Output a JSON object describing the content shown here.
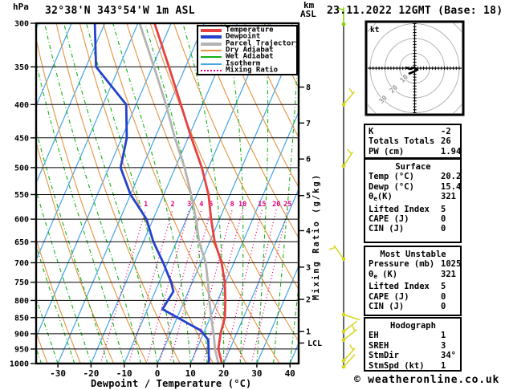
{
  "header": {
    "station_title": "32°38'N 343°54'W 1m ASL",
    "datetime_title": "23.11.2022 12GMT (Base: 18)",
    "pressure_unit": "hPa",
    "km_label": "km",
    "asl_label": "ASL"
  },
  "legend": {
    "items": [
      {
        "label": "Temperature",
        "color_key": "temperature",
        "thick": true,
        "dotted": false
      },
      {
        "label": "Dewpoint",
        "color_key": "dewpoint",
        "thick": true,
        "dotted": false
      },
      {
        "label": "Parcel Trajectory",
        "color_key": "parcel",
        "thick": true,
        "dotted": false
      },
      {
        "label": "Dry Adiabat",
        "color_key": "dry_adiabat",
        "thick": false,
        "dotted": false
      },
      {
        "label": "Wet Adiabat",
        "color_key": "wet_adiabat",
        "thick": false,
        "dotted": false
      },
      {
        "label": "Isotherm",
        "color_key": "isotherm",
        "thick": false,
        "dotted": false
      },
      {
        "label": "Mixing Ratio",
        "color_key": "mixing_ratio",
        "thick": false,
        "dotted": true
      }
    ]
  },
  "axes": {
    "x_title": "Dewpoint / Temperature (°C)",
    "x_ticks_c": [
      -30,
      -20,
      -10,
      0,
      10,
      20,
      30,
      40
    ],
    "pressure_ticks_hpa": [
      300,
      350,
      400,
      450,
      500,
      550,
      600,
      650,
      700,
      750,
      800,
      850,
      900,
      950,
      1000
    ],
    "km_ticks": [
      {
        "km": 8,
        "p": 376
      },
      {
        "km": 7,
        "p": 427
      },
      {
        "km": 6,
        "p": 485
      },
      {
        "km": 5,
        "p": 552
      },
      {
        "km": 4,
        "p": 625
      },
      {
        "km": 3,
        "p": 711
      },
      {
        "km": 2,
        "p": 797
      },
      {
        "km": 1,
        "p": 893
      }
    ],
    "lcl": {
      "label": "LCL",
      "p": 930
    },
    "mixing_axis_label": "Mixing Ratio (g/kg)"
  },
  "chart_data": {
    "type": "skewt_log_p",
    "pressure_range_hpa": [
      300,
      1000
    ],
    "temp_at_surface_axis_c": [
      -40,
      42
    ],
    "skew": "isotherms lean right with height",
    "profiles": {
      "temperature_c": [
        [
          300,
          -45
        ],
        [
          350,
          -35
        ],
        [
          400,
          -26.5
        ],
        [
          450,
          -19
        ],
        [
          500,
          -12
        ],
        [
          550,
          -6.5
        ],
        [
          600,
          -2.5
        ],
        [
          650,
          1.5
        ],
        [
          700,
          6.3
        ],
        [
          750,
          9.8
        ],
        [
          800,
          12.3
        ],
        [
          850,
          14.4
        ],
        [
          900,
          15.2
        ],
        [
          950,
          16.5
        ],
        [
          1000,
          19.5
        ]
      ],
      "dewpoint_c": [
        [
          300,
          -63
        ],
        [
          350,
          -57
        ],
        [
          400,
          -43
        ],
        [
          450,
          -38.5
        ],
        [
          500,
          -36.5
        ],
        [
          550,
          -30
        ],
        [
          600,
          -22
        ],
        [
          650,
          -17
        ],
        [
          700,
          -11.3
        ],
        [
          750,
          -6.4
        ],
        [
          775,
          -4.5
        ],
        [
          825,
          -5.5
        ],
        [
          890,
          8.9
        ],
        [
          920,
          12.3
        ],
        [
          990,
          15.2
        ],
        [
          1000,
          15.4
        ]
      ],
      "parcel_c": [
        [
          300,
          -49.5
        ],
        [
          350,
          -39.5
        ],
        [
          400,
          -31
        ],
        [
          450,
          -24
        ],
        [
          500,
          -17.2
        ],
        [
          550,
          -11.7
        ],
        [
          600,
          -7.1
        ],
        [
          650,
          -3.2
        ],
        [
          700,
          1.5
        ],
        [
          750,
          4.7
        ],
        [
          800,
          7.5
        ],
        [
          850,
          10.3
        ],
        [
          900,
          13.1
        ],
        [
          950,
          15.5
        ],
        [
          1000,
          18.4
        ]
      ]
    },
    "background": {
      "isotherm_step_c": 10,
      "dry_adiabat_theta_k": {
        "min": 230,
        "max": 440,
        "step": 10
      },
      "wet_adiabat_thetaw_c": {
        "min": -40,
        "max": 45,
        "step": 5
      },
      "mixing_ratio_g_kg": [
        1,
        2,
        3,
        4,
        5,
        8,
        10,
        15,
        20,
        25
      ],
      "mixing_label_pressure_hpa": 580
    },
    "wind_barbs": [
      {
        "p": 301,
        "color_key": "barb_green",
        "angle": 0,
        "half_barb": true
      },
      {
        "p": 400,
        "color_key": "barb_yellow",
        "angle": 40,
        "half_barb": true
      },
      {
        "p": 497,
        "color_key": "barb_yellow",
        "angle": 33,
        "half_barb": true
      },
      {
        "p": 691,
        "color_key": "barb_yellow",
        "angle": -35,
        "half_barb": true
      },
      {
        "p": 841,
        "color_key": "barb_yellow",
        "angle": 108,
        "half_barb": false
      },
      {
        "p": 893,
        "color_key": "barb_yellow",
        "angle": 52,
        "half_barb": false
      },
      {
        "p": 920,
        "color_key": "barb_yellow",
        "angle": 52,
        "half_barb": true
      },
      {
        "p": 990,
        "color_key": "barb_yellow",
        "angle": 42,
        "half_barb": true
      },
      {
        "p": 1012,
        "color_key": "barb_yellow",
        "angle": 42,
        "half_barb": false
      }
    ],
    "hodograph": {
      "unit": "kt",
      "rings_kt": [
        10,
        20,
        30,
        40
      ],
      "ring_labels_kt": [
        10,
        20,
        30
      ],
      "tick_step_kt": 2,
      "trace_kt": [
        [
          -6.2,
          0.5
        ],
        [
          -3.0,
          -0.5
        ],
        [
          -0.3,
          0.5
        ],
        [
          1.9,
          -1.1
        ],
        [
          -1.4,
          -2.7
        ],
        [
          -4.1,
          -3.8
        ]
      ]
    }
  },
  "panel": {
    "indices": {
      "rows": [
        {
          "label": "K",
          "value": "-2"
        },
        {
          "label": "Totals Totals",
          "value": "26"
        },
        {
          "label": "PW (cm)",
          "value": "1.94"
        }
      ]
    },
    "surface": {
      "title": "Surface",
      "rows": [
        {
          "label": "Temp (°C)",
          "value": "20.2"
        },
        {
          "label": "Dewp (°C)",
          "value": "15.4"
        },
        {
          "theta": "θ",
          "sub": "e",
          "rest": "(K)",
          "value": "321"
        },
        {
          "label": "Lifted Index",
          "value": "5"
        },
        {
          "label": "CAPE (J)",
          "value": "0"
        },
        {
          "label": "CIN (J)",
          "value": "0"
        }
      ]
    },
    "most_unstable": {
      "title": "Most Unstable",
      "rows": [
        {
          "label": "Pressure (mb)",
          "value": "1025"
        },
        {
          "theta": "θ",
          "sub": "e",
          "rest": " (K)",
          "value": "321"
        },
        {
          "label": "Lifted Index",
          "value": "5"
        },
        {
          "label": "CAPE (J)",
          "value": "0"
        },
        {
          "label": "CIN (J)",
          "value": "0"
        }
      ]
    },
    "hodograph_info": {
      "title": "Hodograph",
      "rows": [
        {
          "label": "EH",
          "value": "1"
        },
        {
          "label": "SREH",
          "value": "3"
        },
        {
          "label": "StmDir",
          "value": "34°"
        },
        {
          "label": "StmSpd (kt)",
          "value": "1"
        }
      ]
    }
  },
  "footer": {
    "copyright": "© weatheronline.co.uk"
  },
  "colors": {
    "temperature": "#e84040",
    "dewpoint": "#2342cc",
    "parcel": "#b3b3b3",
    "dry_adiabat": "#e39440",
    "wet_adiabat": "#12b212",
    "isotherm": "#44a4e8",
    "mixing_ratio": "#e5007f",
    "grid": "#000000",
    "barb_yellow": "#d6d61f",
    "barb_green": "#7fd400",
    "hodo_ring": "#b4b4b4",
    "hodo_label": "#9a9a9a"
  }
}
